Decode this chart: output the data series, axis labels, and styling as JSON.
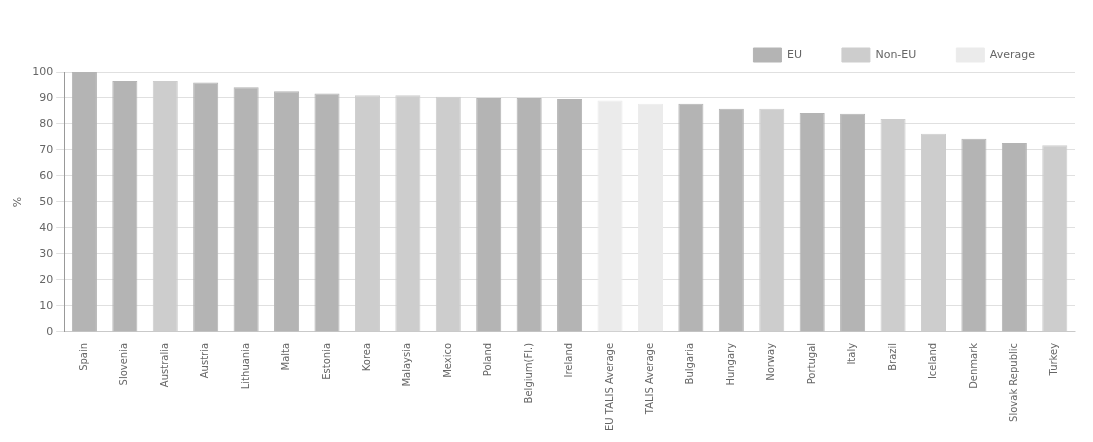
{
  "chart_data": {
    "type": "bar",
    "ylabel": "%",
    "categories": [
      "Spain",
      "Slovenia",
      "Australia",
      "Austria",
      "Lithuania",
      "Malta",
      "Estonia",
      "Korea",
      "Malaysia",
      "Mexico",
      "Poland",
      "Belgium(Fl.)",
      "Ireland",
      "EU TALIS Average",
      "TALIS Average",
      "Bulgaria",
      "Hungary",
      "Norway",
      "Portugal",
      "Italy",
      "Brazil",
      "Iceland",
      "Denmark",
      "Slovak Republic",
      "Turkey"
    ],
    "series": [
      {
        "name": "EU",
        "color": "#b4b4b4",
        "values": [
          100,
          96.5,
          null,
          96,
          94.1,
          92.6,
          91.7,
          null,
          null,
          null,
          90,
          90,
          89.6,
          null,
          null,
          87.8,
          85.9,
          null,
          84.2,
          83.9,
          null,
          null,
          74.3,
          72.7,
          null
        ]
      },
      {
        "name": "Non-EU",
        "color": "#cdcdcd",
        "values": [
          null,
          null,
          96.5,
          null,
          null,
          null,
          null,
          91.1,
          91.1,
          90.5,
          null,
          null,
          null,
          null,
          null,
          null,
          null,
          85.9,
          null,
          null,
          81.9,
          76.2,
          null,
          null,
          71.8
        ]
      },
      {
        "name": "Average",
        "color": "#ebebeb",
        "values": [
          null,
          null,
          null,
          null,
          null,
          null,
          null,
          null,
          null,
          null,
          null,
          null,
          null,
          89,
          87.8,
          null,
          null,
          null,
          null,
          null,
          null,
          null,
          null,
          null,
          null
        ]
      }
    ],
    "ylim": [
      0,
      100
    ],
    "yticks": [
      0,
      10,
      20,
      30,
      40,
      50,
      60,
      70,
      80,
      90,
      100
    ],
    "grid": "y",
    "legend": "top right"
  }
}
